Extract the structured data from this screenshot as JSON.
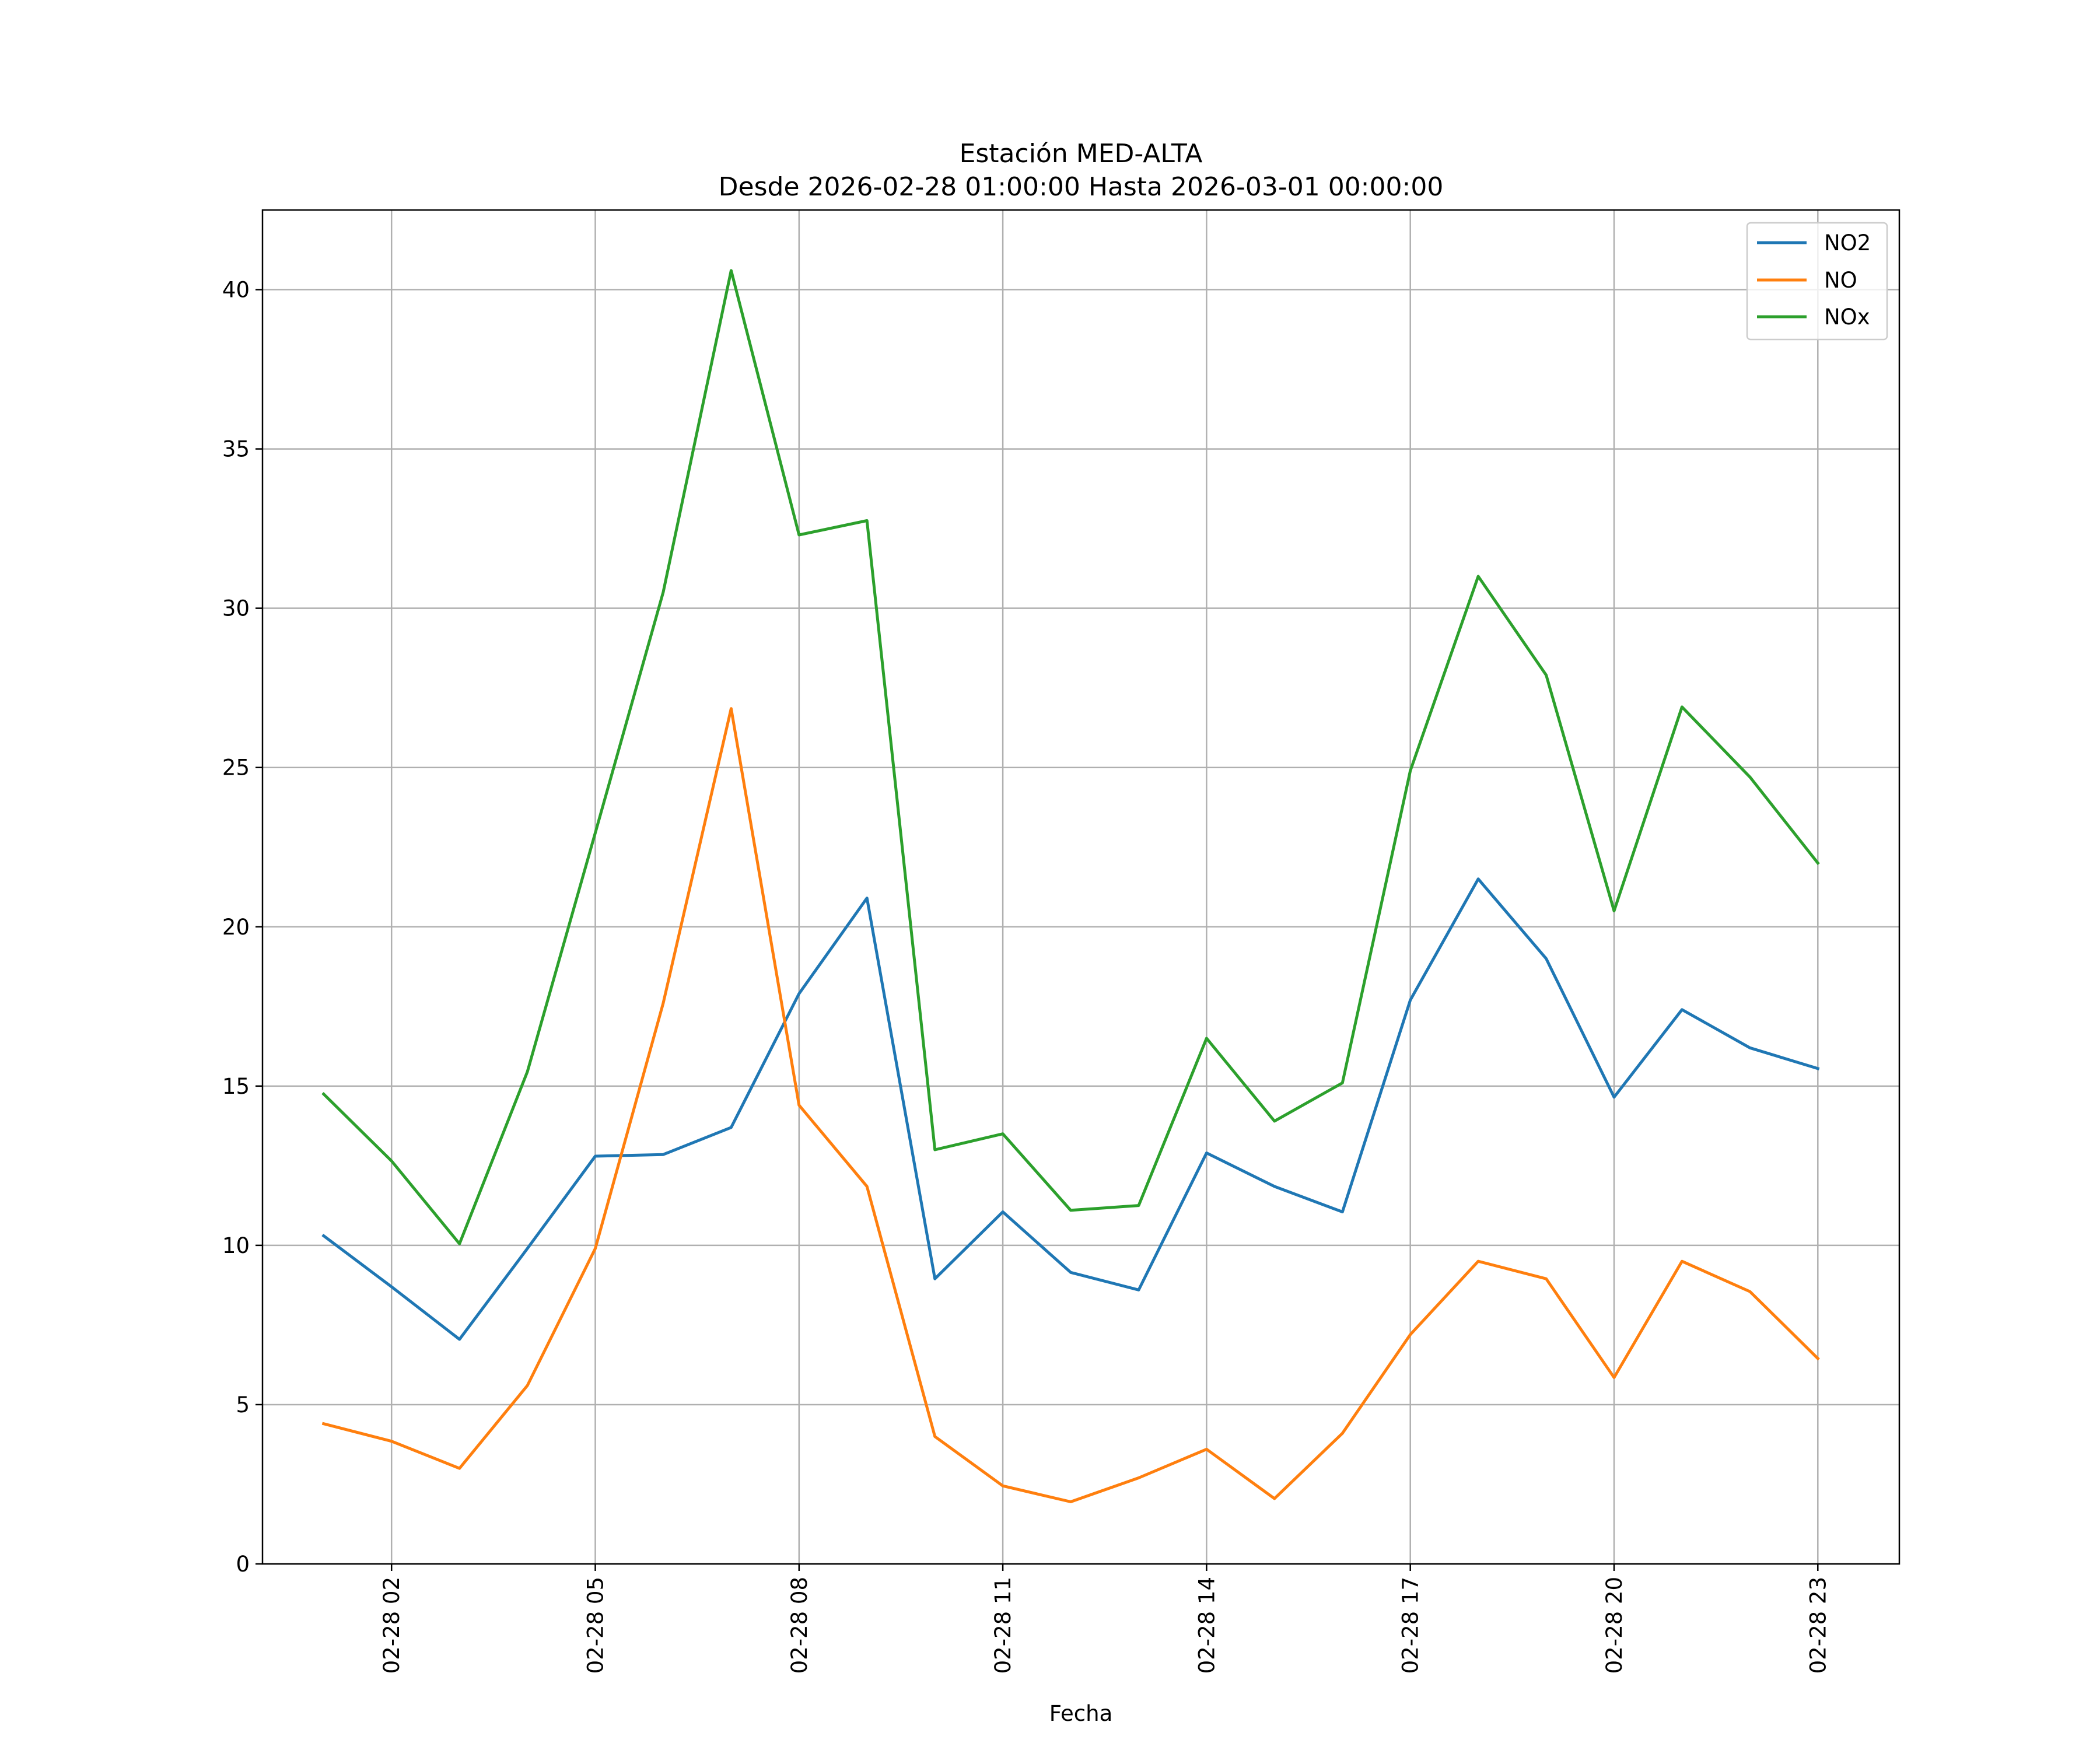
{
  "chart_data": {
    "type": "line",
    "title": "Estación MED-ALTA",
    "subtitle": "Desde 2026-02-28 01:00:00 Hasta 2026-03-01 00:00:00",
    "xlabel": "Fecha",
    "ylabel": "",
    "x_hours": [
      1,
      2,
      3,
      4,
      5,
      6,
      7,
      8,
      9,
      10,
      11,
      12,
      13,
      14,
      15,
      16,
      17,
      18,
      19,
      20,
      21,
      22,
      23
    ],
    "xlim": [
      0.1,
      24.2
    ],
    "ylim": [
      0,
      42.5
    ],
    "x_ticks": [
      2,
      5,
      8,
      11,
      14,
      17,
      20,
      23
    ],
    "x_tick_labels": [
      "02-28 02",
      "02-28 05",
      "02-28 08",
      "02-28 11",
      "02-28 14",
      "02-28 17",
      "02-28 20",
      "02-28 23"
    ],
    "y_ticks": [
      0,
      5,
      10,
      15,
      20,
      25,
      30,
      35,
      40
    ],
    "y_tick_labels": [
      "0",
      "5",
      "10",
      "15",
      "20",
      "25",
      "30",
      "35",
      "40"
    ],
    "grid": true,
    "legend_position": "top-right",
    "colors": {
      "NO2": "#1f77b4",
      "NO": "#ff7f0e",
      "NOx": "#2ca02c"
    },
    "series": [
      {
        "name": "NO2",
        "values": [
          10.3,
          8.7,
          7.05,
          9.9,
          12.8,
          12.85,
          13.7,
          17.9,
          20.9,
          8.95,
          11.05,
          9.15,
          8.6,
          12.9,
          11.85,
          11.05,
          17.7,
          21.5,
          19.0,
          14.65,
          17.4,
          16.2,
          15.55
        ]
      },
      {
        "name": "NO",
        "values": [
          4.4,
          3.85,
          3.0,
          5.6,
          9.9,
          17.6,
          26.85,
          14.4,
          11.85,
          4.0,
          2.45,
          1.95,
          2.7,
          3.6,
          2.05,
          4.1,
          7.2,
          9.5,
          8.95,
          5.85,
          9.5,
          8.55,
          6.45
        ]
      },
      {
        "name": "NOx",
        "values": [
          14.75,
          12.65,
          10.05,
          15.45,
          22.95,
          30.5,
          40.6,
          32.3,
          32.75,
          13.0,
          13.5,
          11.1,
          11.25,
          16.5,
          13.9,
          15.1,
          24.9,
          31.0,
          27.9,
          20.5,
          26.9,
          24.7,
          22.0
        ]
      }
    ]
  }
}
